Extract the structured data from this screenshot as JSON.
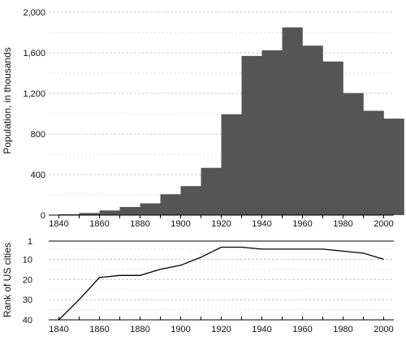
{
  "chart_data": [
    {
      "type": "bar",
      "ylabel": "Population, in thousands",
      "ylim": [
        0,
        2000
      ],
      "yticks": [
        0,
        400,
        800,
        1200,
        1600,
        2000
      ],
      "ytick_labels": [
        "0",
        "400",
        "800",
        "1,200",
        "1,600",
        "2,000"
      ],
      "xticks": [
        1840,
        1860,
        1880,
        1900,
        1920,
        1940,
        1960,
        1980,
        2000
      ],
      "xtick_labels": [
        "1840",
        "1860",
        "1880",
        "1900",
        "1920",
        "1940",
        "1960",
        "1980",
        "2000"
      ],
      "xlim": [
        1835,
        2005
      ],
      "bin_width": 10,
      "bar_color": "#555555",
      "grid": "horizontal dashed",
      "x": [
        1840,
        1850,
        1860,
        1870,
        1880,
        1890,
        1900,
        1910,
        1920,
        1930,
        1940,
        1950,
        1960,
        1970,
        1980,
        1990,
        2000
      ],
      "values": [
        9,
        21,
        46,
        80,
        116,
        206,
        286,
        466,
        994,
        1569,
        1624,
        1850,
        1670,
        1514,
        1203,
        1028,
        951
      ]
    },
    {
      "type": "line",
      "ylabel": "Rank of US cities",
      "ylim": [
        1,
        40
      ],
      "y_inverted": true,
      "yticks": [
        1,
        10,
        20,
        30,
        40
      ],
      "ytick_labels": [
        "1",
        "10",
        "20",
        "30",
        "40"
      ],
      "xticks": [
        1840,
        1860,
        1880,
        1900,
        1920,
        1940,
        1960,
        1980,
        2000
      ],
      "xtick_labels": [
        "1840",
        "1860",
        "1880",
        "1900",
        "1920",
        "1940",
        "1960",
        "1980",
        "2000"
      ],
      "xlim": [
        1835,
        2005
      ],
      "line_color": "#000000",
      "grid": "horizontal dashed",
      "x": [
        1840,
        1850,
        1860,
        1870,
        1880,
        1890,
        1900,
        1910,
        1920,
        1930,
        1940,
        1950,
        1960,
        1970,
        1980,
        1990,
        2000
      ],
      "values": [
        40,
        30,
        19,
        18,
        18,
        15,
        13,
        9,
        4,
        4,
        5,
        5,
        5,
        5,
        6,
        7,
        10
      ]
    }
  ]
}
